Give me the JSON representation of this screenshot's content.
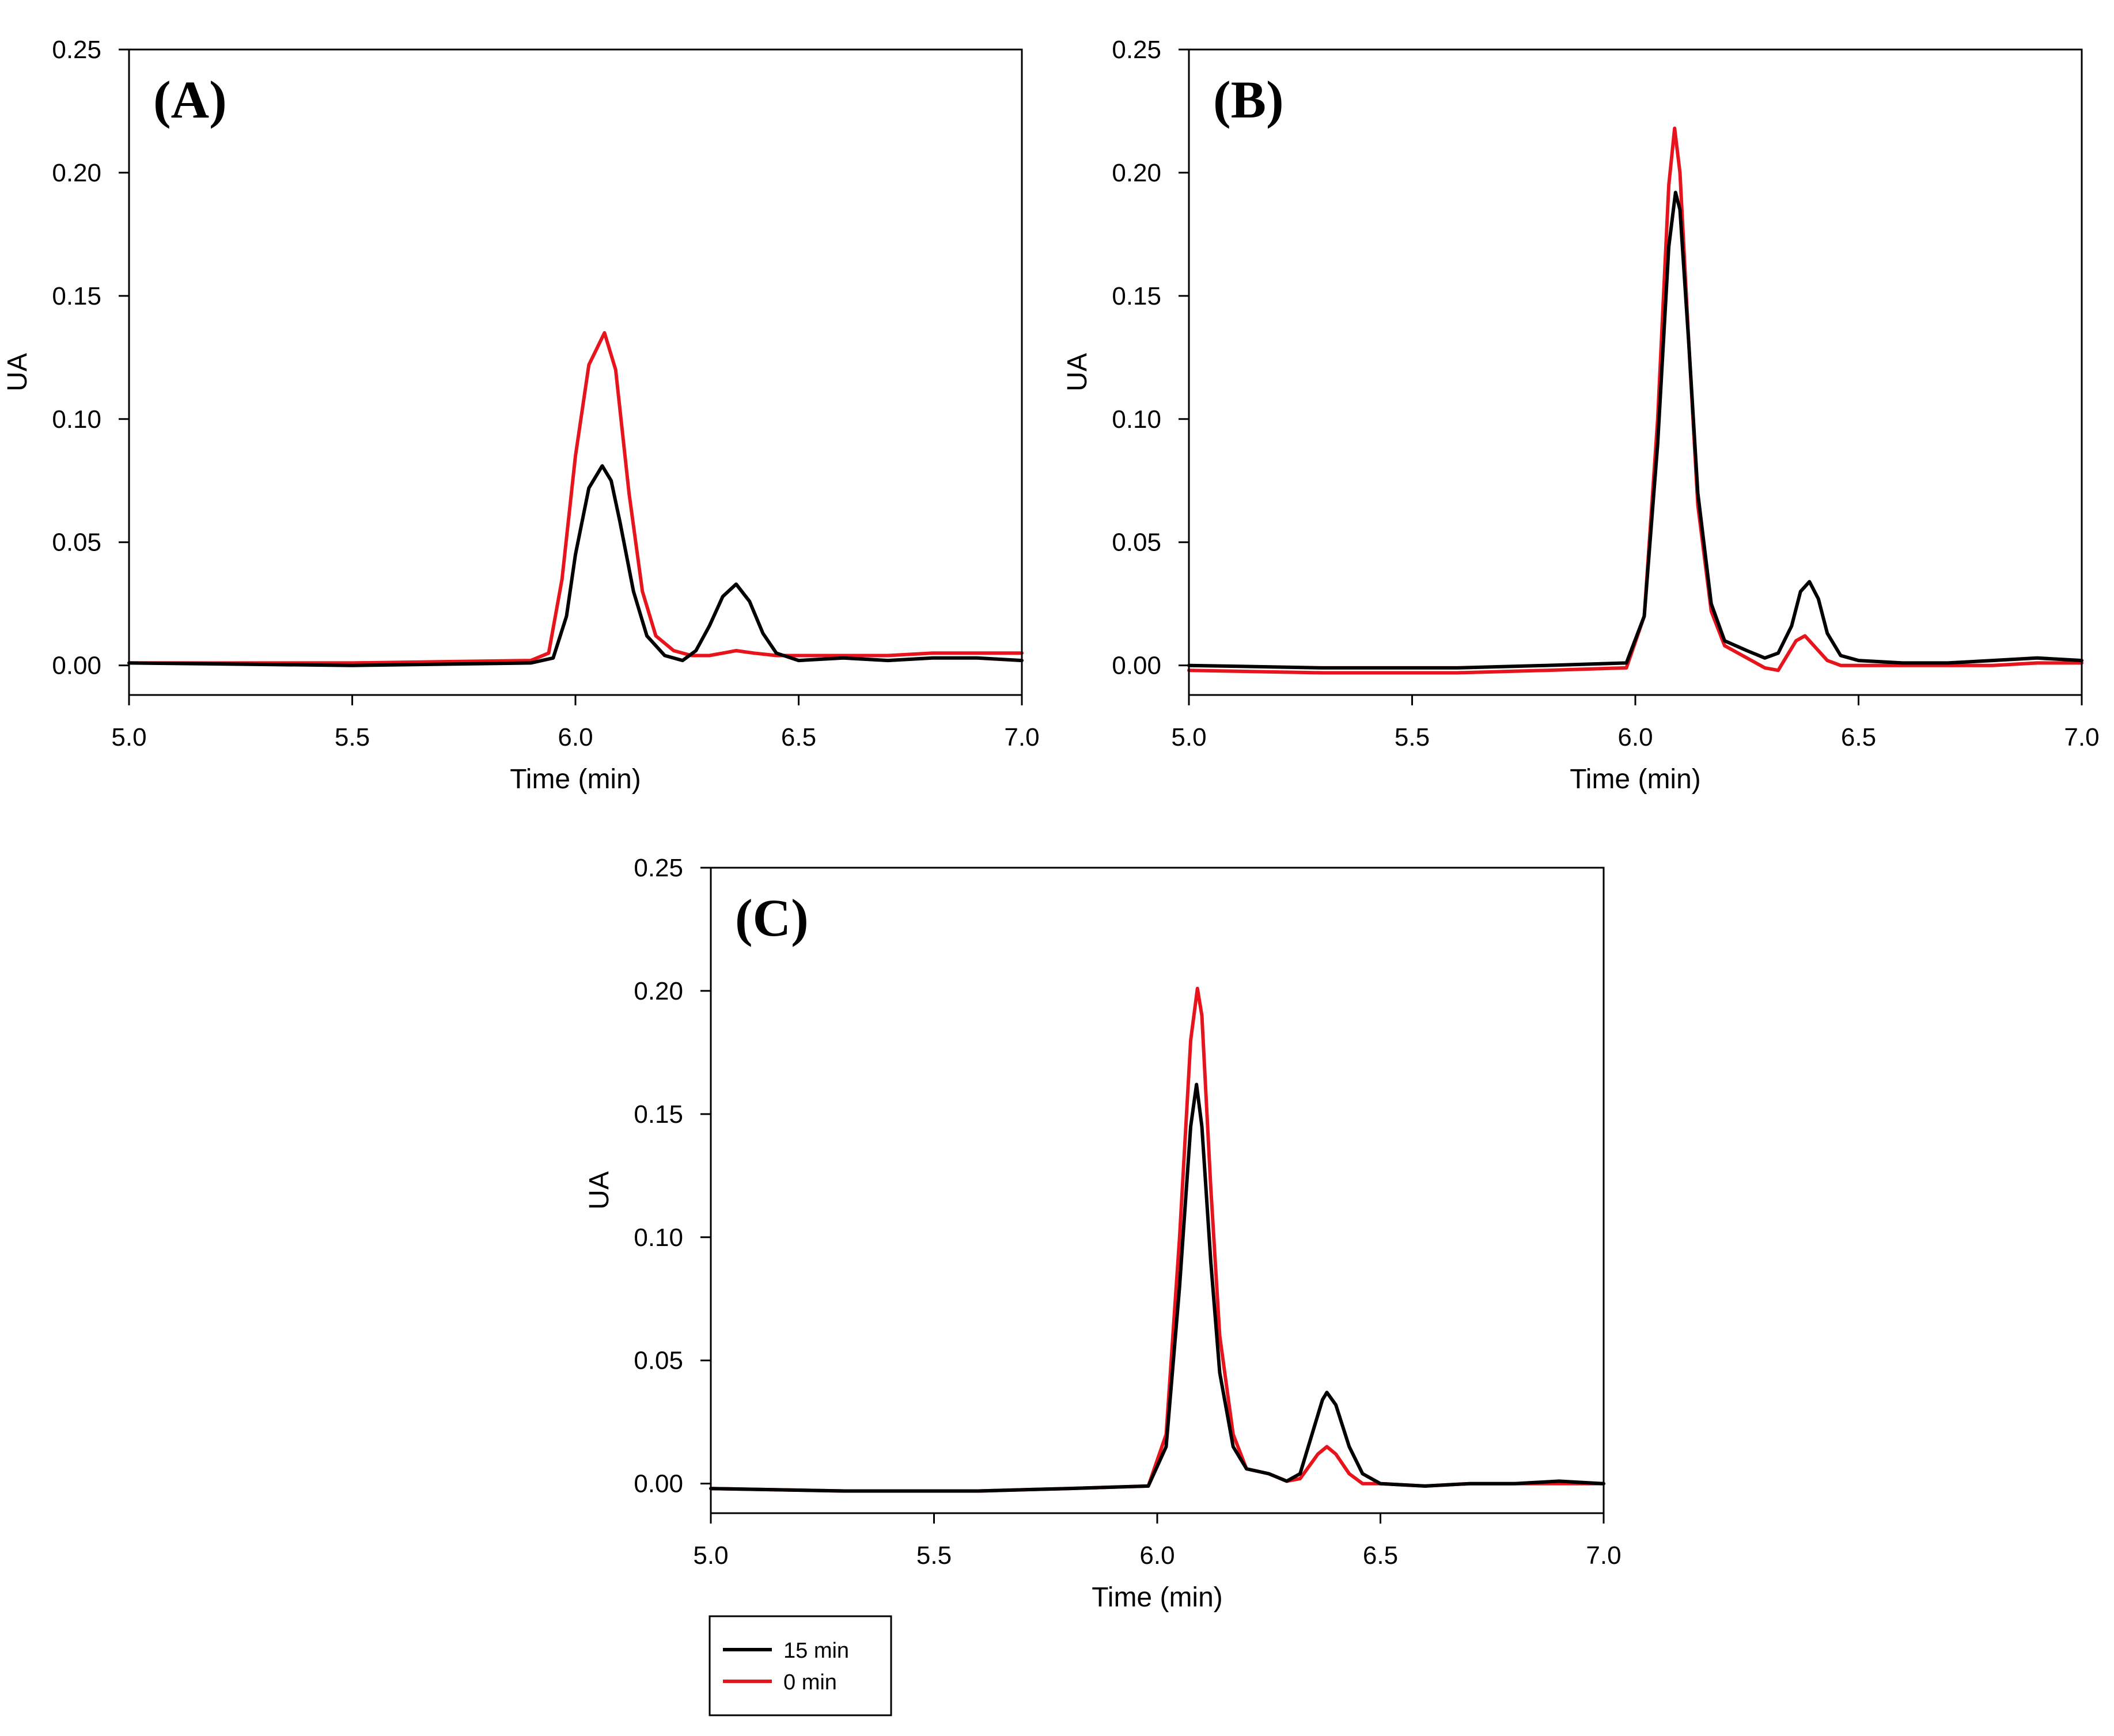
{
  "legend": [
    {
      "label": "15 min",
      "color": "#000000"
    },
    {
      "label": "0 min",
      "color": "#e8141b"
    }
  ],
  "chart_data": [
    {
      "type": "line",
      "panel_label": "(A)",
      "xlabel": "Time (min)",
      "ylabel": "UA",
      "xlim": [
        5.0,
        7.0
      ],
      "ylim": [
        -0.012,
        0.25
      ],
      "xticks": [
        "5.0",
        "5.5",
        "6.0",
        "6.5",
        "7.0"
      ],
      "yticks": [
        "0.00",
        "0.05",
        "0.10",
        "0.15",
        "0.20",
        "0.25"
      ],
      "series": [
        {
          "name": "15 min",
          "color": "#000000",
          "x": [
            5.0,
            5.5,
            5.9,
            5.95,
            5.98,
            6.0,
            6.03,
            6.06,
            6.08,
            6.1,
            6.13,
            6.16,
            6.2,
            6.24,
            6.27,
            6.3,
            6.33,
            6.36,
            6.39,
            6.42,
            6.45,
            6.5,
            6.6,
            6.7,
            6.8,
            6.9,
            7.0
          ],
          "y": [
            0.001,
            0.0,
            0.001,
            0.003,
            0.02,
            0.045,
            0.072,
            0.081,
            0.075,
            0.058,
            0.03,
            0.012,
            0.004,
            0.002,
            0.006,
            0.016,
            0.028,
            0.033,
            0.026,
            0.013,
            0.005,
            0.002,
            0.003,
            0.002,
            0.003,
            0.003,
            0.002
          ]
        },
        {
          "name": "0 min",
          "color": "#e8141b",
          "x": [
            5.0,
            5.5,
            5.9,
            5.94,
            5.97,
            6.0,
            6.03,
            6.065,
            6.09,
            6.12,
            6.15,
            6.18,
            6.22,
            6.26,
            6.3,
            6.33,
            6.36,
            6.4,
            6.45,
            6.5,
            6.6,
            6.7,
            6.8,
            6.9,
            7.0
          ],
          "y": [
            0.001,
            0.001,
            0.002,
            0.005,
            0.035,
            0.085,
            0.122,
            0.135,
            0.12,
            0.07,
            0.03,
            0.012,
            0.006,
            0.004,
            0.004,
            0.005,
            0.006,
            0.005,
            0.004,
            0.004,
            0.004,
            0.004,
            0.005,
            0.005,
            0.005
          ]
        }
      ]
    },
    {
      "type": "line",
      "panel_label": "(B)",
      "xlabel": "Time (min)",
      "ylabel": "UA",
      "xlim": [
        5.0,
        7.0
      ],
      "ylim": [
        -0.012,
        0.25
      ],
      "xticks": [
        "5.0",
        "5.5",
        "6.0",
        "6.5",
        "7.0"
      ],
      "yticks": [
        "0.00",
        "0.05",
        "0.10",
        "0.15",
        "0.20",
        "0.25"
      ],
      "series": [
        {
          "name": "15 min",
          "color": "#000000",
          "x": [
            5.0,
            5.3,
            5.6,
            5.8,
            5.98,
            6.02,
            6.05,
            6.075,
            6.09,
            6.1,
            6.12,
            6.14,
            6.17,
            6.2,
            6.25,
            6.29,
            6.32,
            6.35,
            6.37,
            6.39,
            6.41,
            6.43,
            6.46,
            6.5,
            6.6,
            6.7,
            6.8,
            6.9,
            7.0
          ],
          "y": [
            0.0,
            -0.001,
            -0.001,
            0.0,
            0.001,
            0.02,
            0.09,
            0.17,
            0.192,
            0.185,
            0.13,
            0.07,
            0.025,
            0.01,
            0.006,
            0.003,
            0.005,
            0.016,
            0.03,
            0.034,
            0.027,
            0.013,
            0.004,
            0.002,
            0.001,
            0.001,
            0.002,
            0.003,
            0.002
          ]
        },
        {
          "name": "0 min",
          "color": "#e8141b",
          "x": [
            5.0,
            5.3,
            5.6,
            5.8,
            5.98,
            6.02,
            6.05,
            6.075,
            6.088,
            6.1,
            6.12,
            6.14,
            6.17,
            6.2,
            6.25,
            6.29,
            6.32,
            6.36,
            6.38,
            6.4,
            6.43,
            6.46,
            6.5,
            6.6,
            6.7,
            6.8,
            6.9,
            7.0
          ],
          "y": [
            -0.002,
            -0.003,
            -0.003,
            -0.002,
            -0.001,
            0.02,
            0.1,
            0.195,
            0.218,
            0.2,
            0.13,
            0.065,
            0.022,
            0.008,
            0.003,
            -0.001,
            -0.002,
            0.01,
            0.012,
            0.008,
            0.002,
            0.0,
            0.0,
            0.0,
            0.0,
            0.0,
            0.001,
            0.001
          ]
        }
      ]
    },
    {
      "type": "line",
      "panel_label": "(C)",
      "xlabel": "Time (min)",
      "ylabel": "UA",
      "xlim": [
        5.0,
        7.0
      ],
      "ylim": [
        -0.012,
        0.25
      ],
      "xticks": [
        "5.0",
        "5.5",
        "6.0",
        "6.5",
        "7.0"
      ],
      "yticks": [
        "0.00",
        "0.05",
        "0.10",
        "0.15",
        "0.20",
        "0.25"
      ],
      "series": [
        {
          "name": "15 min",
          "color": "#000000",
          "x": [
            5.0,
            5.3,
            5.6,
            5.8,
            5.98,
            6.02,
            6.05,
            6.075,
            6.088,
            6.1,
            6.12,
            6.14,
            6.17,
            6.2,
            6.25,
            6.29,
            6.32,
            6.35,
            6.37,
            6.38,
            6.4,
            6.43,
            6.46,
            6.5,
            6.6,
            6.7,
            6.8,
            6.9,
            7.0
          ],
          "y": [
            -0.002,
            -0.003,
            -0.003,
            -0.002,
            -0.001,
            0.015,
            0.08,
            0.145,
            0.162,
            0.145,
            0.09,
            0.045,
            0.015,
            0.006,
            0.004,
            0.001,
            0.004,
            0.022,
            0.034,
            0.037,
            0.032,
            0.015,
            0.004,
            0.0,
            -0.001,
            0.0,
            0.0,
            0.001,
            0.0
          ]
        },
        {
          "name": "0 min",
          "color": "#e8141b",
          "x": [
            5.0,
            5.3,
            5.6,
            5.8,
            5.98,
            6.02,
            6.05,
            6.075,
            6.09,
            6.1,
            6.12,
            6.14,
            6.17,
            6.2,
            6.25,
            6.29,
            6.32,
            6.36,
            6.38,
            6.4,
            6.43,
            6.46,
            6.5,
            6.6,
            6.7,
            6.8,
            6.9,
            7.0
          ],
          "y": [
            -0.002,
            -0.003,
            -0.003,
            -0.002,
            -0.001,
            0.02,
            0.1,
            0.18,
            0.201,
            0.19,
            0.12,
            0.06,
            0.02,
            0.006,
            0.004,
            0.001,
            0.002,
            0.012,
            0.015,
            0.012,
            0.004,
            0.0,
            0.0,
            -0.001,
            0.0,
            0.0,
            0.0,
            0.0
          ]
        }
      ]
    }
  ]
}
